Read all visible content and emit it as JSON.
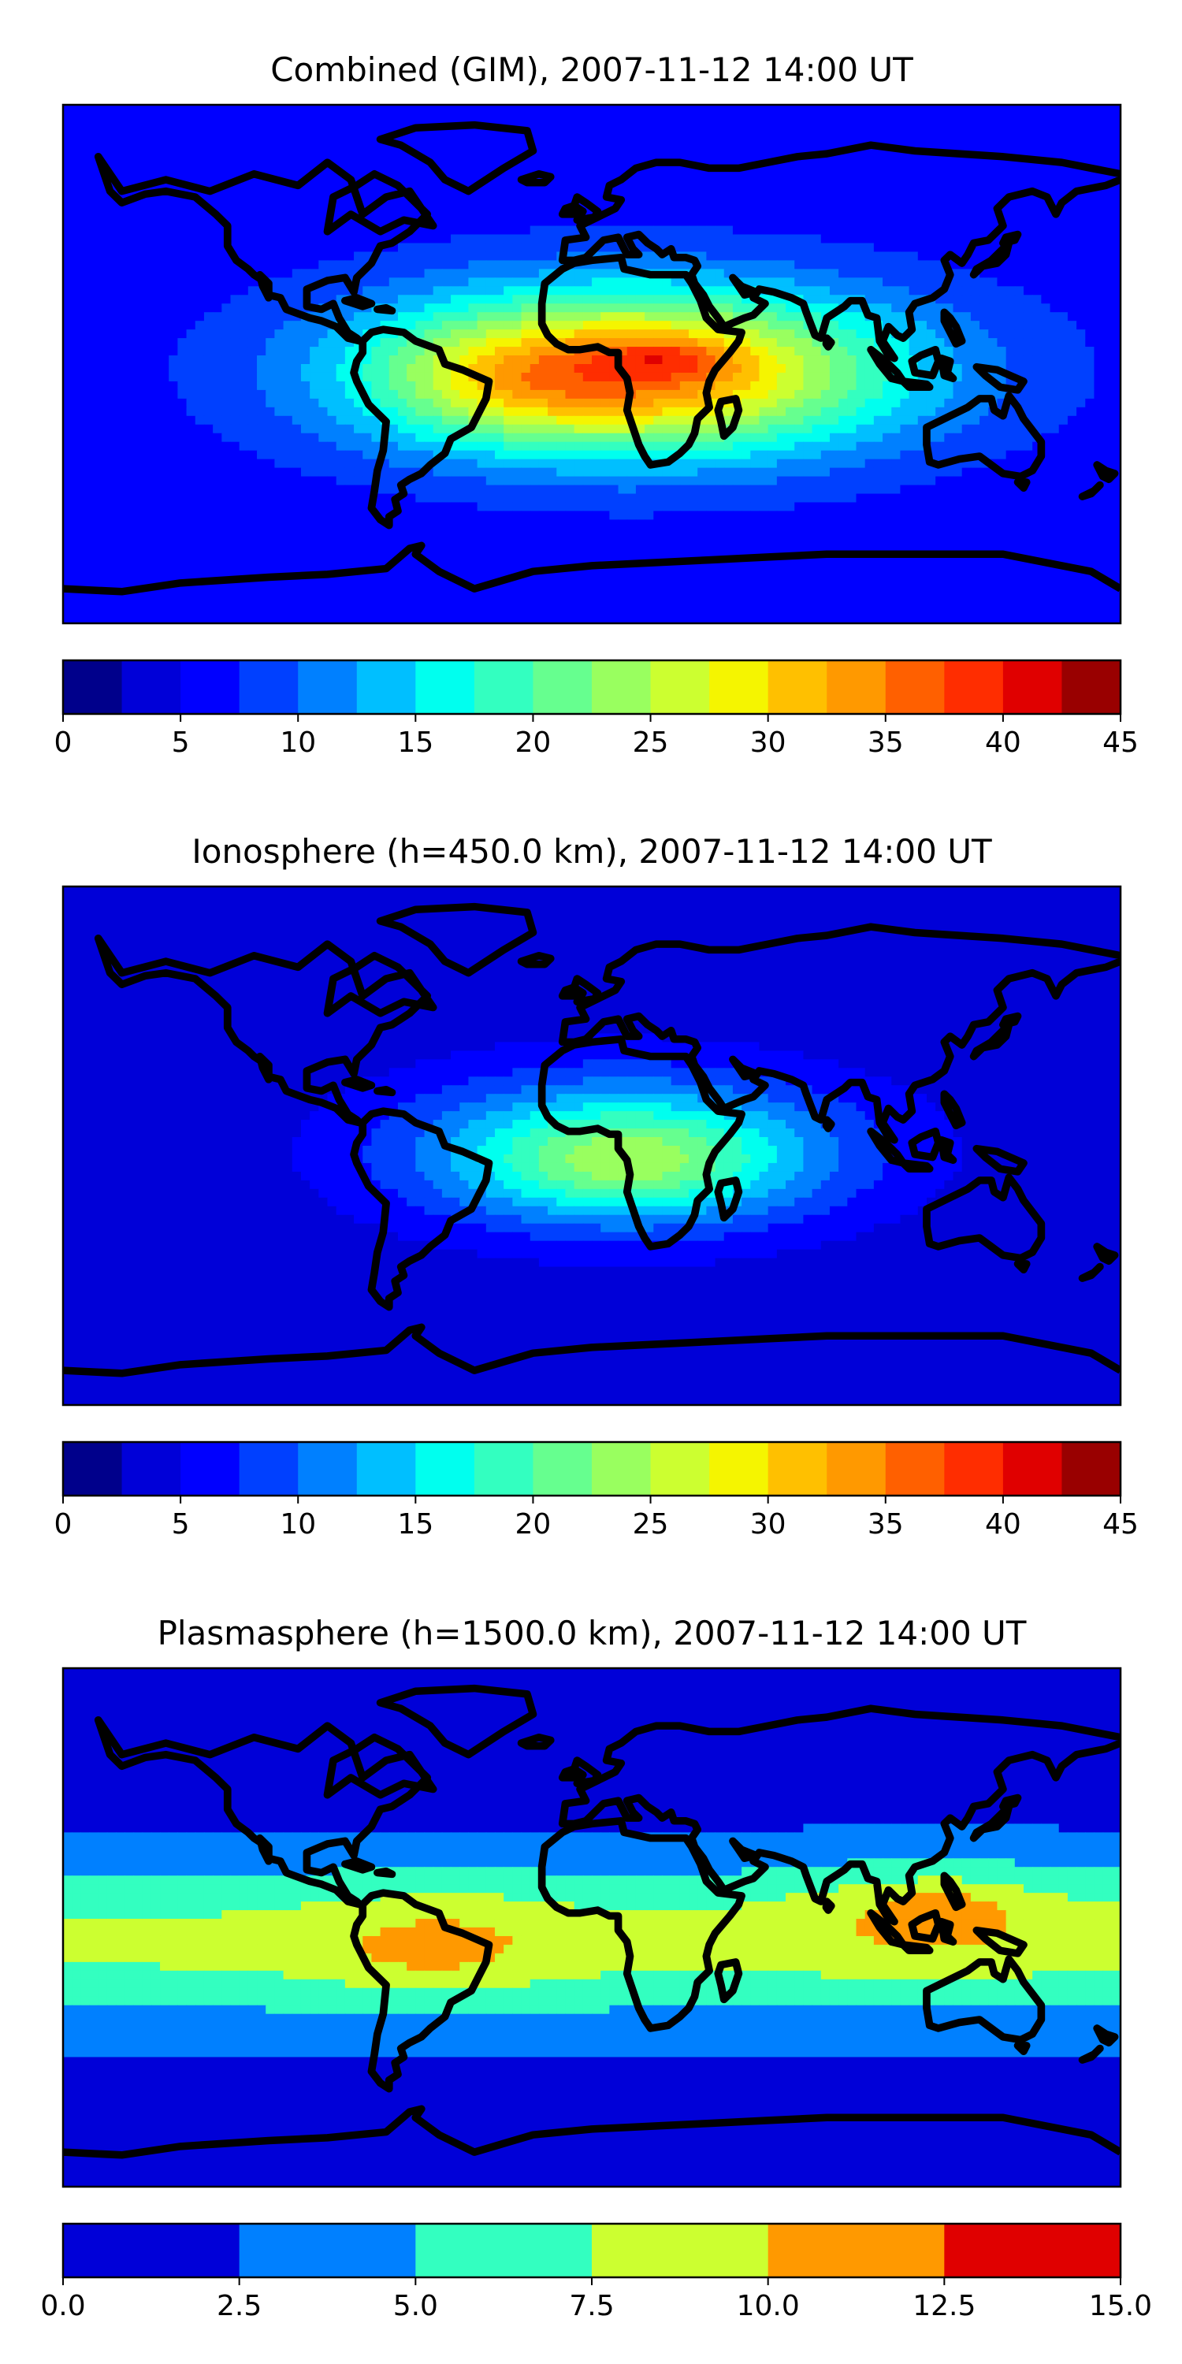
{
  "chart_data": [
    {
      "type": "heatmap",
      "title": "Combined (GIM), 2007-11-12 14:00 UT",
      "colorbar": {
        "levels": [
          0,
          2.5,
          5,
          7.5,
          10,
          12.5,
          15,
          17.5,
          20,
          22.5,
          25,
          27.5,
          30,
          32.5,
          35,
          37.5,
          40,
          42.5,
          45
        ],
        "colors": [
          "#00008b",
          "#0000d8",
          "#0000ff",
          "#0040ff",
          "#0080ff",
          "#00bfff",
          "#00ffef",
          "#33ffc0",
          "#66ff8f",
          "#99ff5f",
          "#ccff30",
          "#f5f500",
          "#ffc000",
          "#ff9900",
          "#ff6000",
          "#ff2d00",
          "#e00000",
          "#990000"
        ],
        "ticks": [
          0,
          5,
          10,
          15,
          20,
          25,
          30,
          35,
          40,
          45
        ],
        "tick_labels": [
          "0",
          "5",
          "10",
          "15",
          "20",
          "25",
          "30",
          "35",
          "40",
          "45"
        ]
      },
      "map_features": [
        {
          "lon": 15,
          "lat": -2,
          "sx": 95,
          "sy": 30,
          "value": 22
        },
        {
          "lon": 10,
          "lat": -5,
          "sx": 75,
          "sy": 25,
          "value": 8
        },
        {
          "lon": -30,
          "lat": -6,
          "sx": 38,
          "sy": 18,
          "value": 4
        },
        {
          "lon": 26,
          "lat": 2,
          "sx": 22,
          "sy": 7,
          "value": 5
        }
      ],
      "background_value": 6
    },
    {
      "type": "heatmap",
      "title": "Ionosphere  (h=450.0 km), 2007-11-12 14:00 UT",
      "colorbar": {
        "levels": [
          0,
          2.5,
          5,
          7.5,
          10,
          12.5,
          15,
          17.5,
          20,
          22.5,
          25,
          27.5,
          30,
          32.5,
          35,
          37.5,
          40,
          42.5,
          45
        ],
        "colors": [
          "#00008b",
          "#0000d8",
          "#0000ff",
          "#0040ff",
          "#0080ff",
          "#00bfff",
          "#00ffef",
          "#33ffc0",
          "#66ff8f",
          "#99ff5f",
          "#ccff30",
          "#f5f500",
          "#ffc000",
          "#ff9900",
          "#ff6000",
          "#ff2d00",
          "#e00000",
          "#990000"
        ],
        "ticks": [
          0,
          5,
          10,
          15,
          20,
          25,
          30,
          35,
          40,
          45
        ],
        "tick_labels": [
          "0",
          "5",
          "10",
          "15",
          "20",
          "25",
          "30",
          "35",
          "40",
          "45"
        ]
      },
      "map_features": [
        {
          "lon": 12,
          "lat": -2,
          "sx": 80,
          "sy": 28,
          "value": 15
        },
        {
          "lon": 12,
          "lat": -6,
          "sx": 45,
          "sy": 16,
          "value": 7
        }
      ],
      "background_value": 3
    },
    {
      "type": "heatmap",
      "title": "Plasmasphere (h=1500.0 km), 2007-11-12 14:00 UT",
      "colorbar": {
        "levels": [
          0,
          2.5,
          5,
          7.5,
          10,
          12.5,
          15
        ],
        "colors": [
          "#0000d8",
          "#0080ff",
          "#33ffc0",
          "#ccff30",
          "#ff9900",
          "#e00000"
        ],
        "ticks": [
          0,
          2.5,
          5,
          7.5,
          10,
          12.5,
          15
        ],
        "tick_labels": [
          "0.0",
          "2.5",
          "5.0",
          "7.5",
          "10.0",
          "12.5",
          "15.0"
        ]
      },
      "map_features": [
        {
          "lon": 0,
          "lat": -5,
          "sx": 0,
          "sy": 30,
          "value": 6.8
        },
        {
          "lon": -52,
          "lat": -5,
          "sx": 45,
          "sy": 20,
          "value": 2.5
        },
        {
          "lon": 115,
          "lat": 5,
          "sx": 50,
          "sy": 18,
          "value": 3.0
        },
        {
          "lon": -55,
          "lat": -8,
          "sx": 18,
          "sy": 6,
          "value": 1.5
        },
        {
          "lon": 120,
          "lat": 8,
          "sx": 18,
          "sy": 7,
          "value": 1.5
        }
      ],
      "background_value": 1.2
    }
  ]
}
